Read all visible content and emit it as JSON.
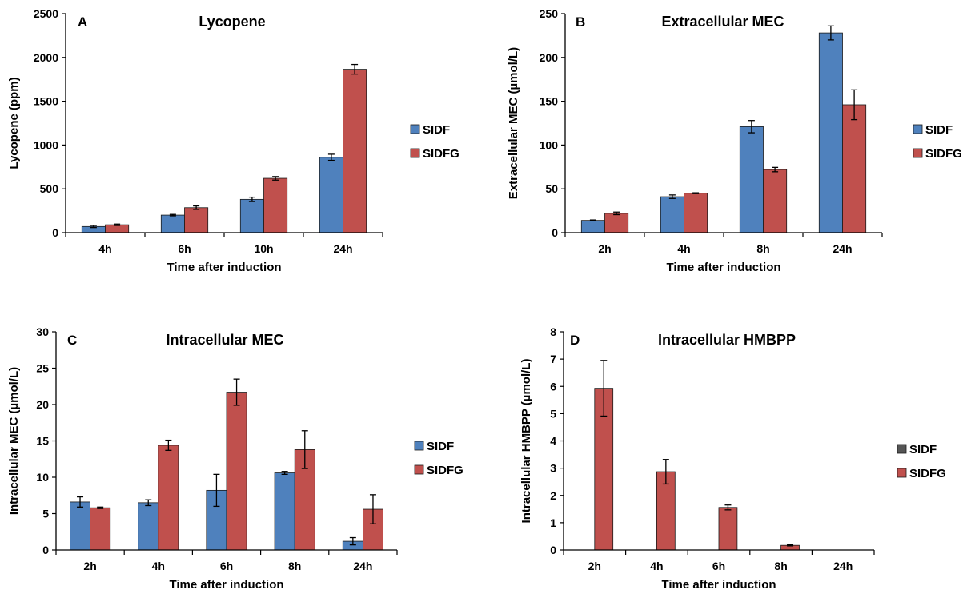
{
  "colors": {
    "SIDF": "#4f81bd",
    "SIDFG": "#c0504d",
    "bar_stroke": "#1a1a1a",
    "axis": "#000000"
  },
  "chart_data": [
    {
      "type": "bar",
      "panel": "A",
      "title": "Lycopene",
      "xlabel": "Time after induction",
      "ylabel": "Lycopene (ppm)",
      "ylim": [
        0,
        2500
      ],
      "yticks": [
        0,
        500,
        1000,
        1500,
        2000,
        2500
      ],
      "categories": [
        "4h",
        "6h",
        "10h",
        "24h"
      ],
      "legend_position": "right",
      "series": [
        {
          "name": "SIDF",
          "values": [
            70,
            200,
            380,
            860
          ],
          "errors": [
            12,
            8,
            25,
            35
          ]
        },
        {
          "name": "SIDFG",
          "values": [
            90,
            285,
            620,
            1865
          ],
          "errors": [
            8,
            20,
            20,
            55
          ]
        }
      ]
    },
    {
      "type": "bar",
      "panel": "B",
      "title": "Extracellular MEC",
      "xlabel": "Time after induction",
      "ylabel": "Extracellular MEC (µmol/L)",
      "ylim": [
        0,
        250
      ],
      "yticks": [
        0,
        50,
        100,
        150,
        200,
        250
      ],
      "categories": [
        "2h",
        "4h",
        "8h",
        "24h"
      ],
      "legend_position": "right",
      "series": [
        {
          "name": "SIDF",
          "values": [
            14,
            41,
            121,
            228
          ],
          "errors": [
            0.5,
            2,
            7,
            8
          ]
        },
        {
          "name": "SIDFG",
          "values": [
            22,
            45,
            72,
            146
          ],
          "errors": [
            1.5,
            0.5,
            2.5,
            17
          ]
        }
      ]
    },
    {
      "type": "bar",
      "panel": "C",
      "title": "Intracellular MEC",
      "xlabel": "Time after induction",
      "ylabel": "Intracellular MEC (µmol/L)",
      "ylim": [
        0,
        30
      ],
      "yticks": [
        0,
        5,
        10,
        15,
        20,
        25,
        30
      ],
      "categories": [
        "2h",
        "4h",
        "6h",
        "8h",
        "24h"
      ],
      "legend_position": "right",
      "series": [
        {
          "name": "SIDF",
          "values": [
            6.6,
            6.5,
            8.2,
            10.6,
            1.2
          ],
          "errors": [
            0.7,
            0.4,
            2.2,
            0.2,
            0.5
          ]
        },
        {
          "name": "SIDFG",
          "values": [
            5.8,
            14.4,
            21.7,
            13.8,
            5.6
          ],
          "errors": [
            0.1,
            0.7,
            1.8,
            2.6,
            2.0
          ]
        }
      ]
    },
    {
      "type": "bar",
      "panel": "D",
      "title": "Intracellular HMBPP",
      "xlabel": "Time after induction",
      "ylabel": "Intracellular HMBPP (µmol/L)",
      "ylim": [
        0,
        8
      ],
      "yticks": [
        0,
        1,
        2,
        3,
        4,
        5,
        6,
        7,
        8
      ],
      "categories": [
        "2h",
        "4h",
        "6h",
        "8h",
        "24h"
      ],
      "legend_position": "right",
      "series": [
        {
          "name": "SIDF",
          "values": [
            0,
            0,
            0,
            0,
            0
          ],
          "errors": [
            0,
            0,
            0,
            0,
            0
          ],
          "legend_swatch": "#555555"
        },
        {
          "name": "SIDFG",
          "values": [
            5.93,
            2.87,
            1.56,
            0.17,
            0
          ],
          "errors": [
            1.02,
            0.45,
            0.09,
            0.02,
            0
          ]
        }
      ]
    }
  ]
}
